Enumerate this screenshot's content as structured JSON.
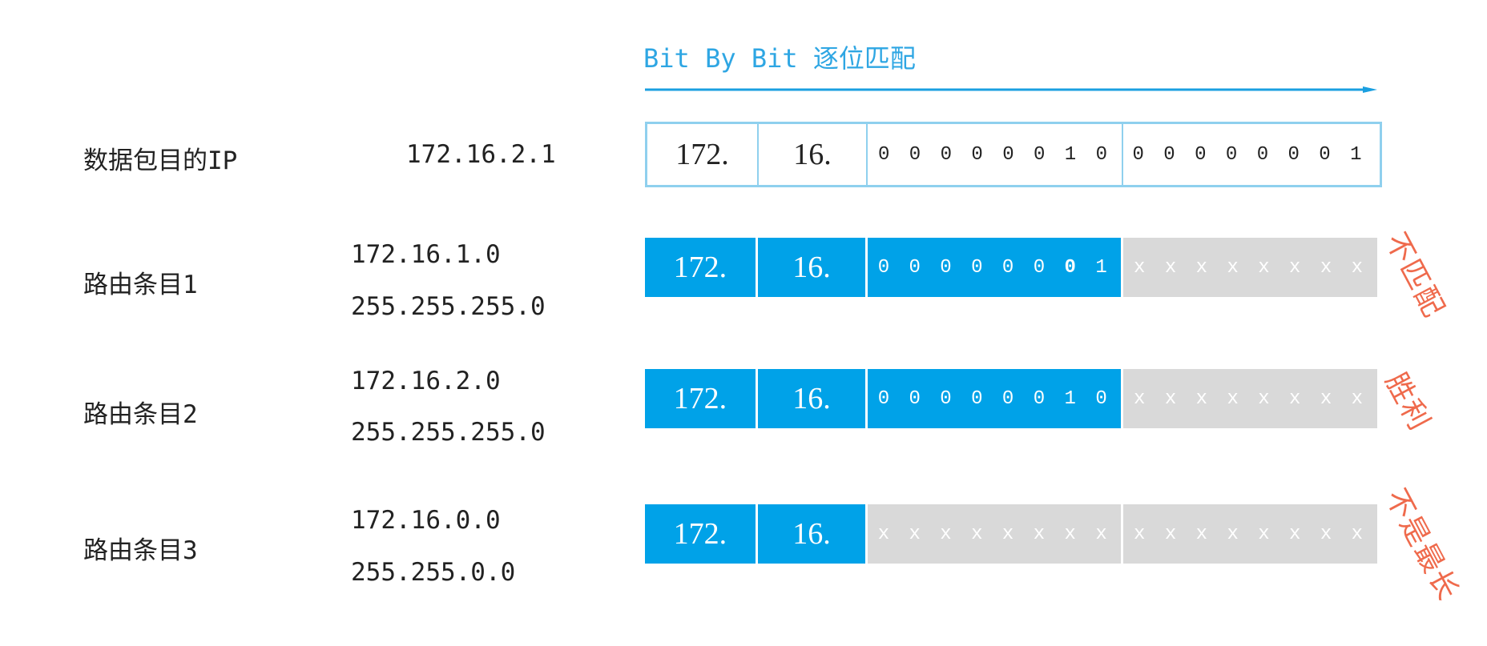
{
  "title": "Bit By Bit 逐位匹配",
  "colors": {
    "accent": "#00a2e8",
    "mismatch_gray": "#d9d9d9",
    "annotation": "#ef6a4c",
    "title": "#2ea6e3"
  },
  "packet": {
    "label": "数据包目的IP",
    "ip": "172.16.2.1",
    "segments": [
      "172.",
      "16.",
      "0 0 0 0 0 0 1 0",
      "0 0 0 0 0 0 0 1"
    ]
  },
  "routes": [
    {
      "label": "路由条目1",
      "network": "172.16.1.0",
      "mask": "255.255.255.0",
      "segments": [
        "172.",
        "16.",
        "0 0 0 0 0 0 0 1",
        "x x x x x x x x"
      ],
      "highlight_bit_prefix": "0 0 0 0 0 0 ",
      "highlight_bit": "0",
      "highlight_bit_suffix": " 1",
      "note": "不匹配"
    },
    {
      "label": "路由条目2",
      "network": "172.16.2.0",
      "mask": "255.255.255.0",
      "segments": [
        "172.",
        "16.",
        "0 0 0 0 0 0 1 0",
        "x x x x x x x x"
      ],
      "note": "胜利"
    },
    {
      "label": "路由条目3",
      "network": "172.16.0.0",
      "mask": "255.255.0.0",
      "segments": [
        "172.",
        "16.",
        "x x x x x x x x",
        "x x x x x x x x"
      ],
      "note": "不是最长"
    }
  ]
}
